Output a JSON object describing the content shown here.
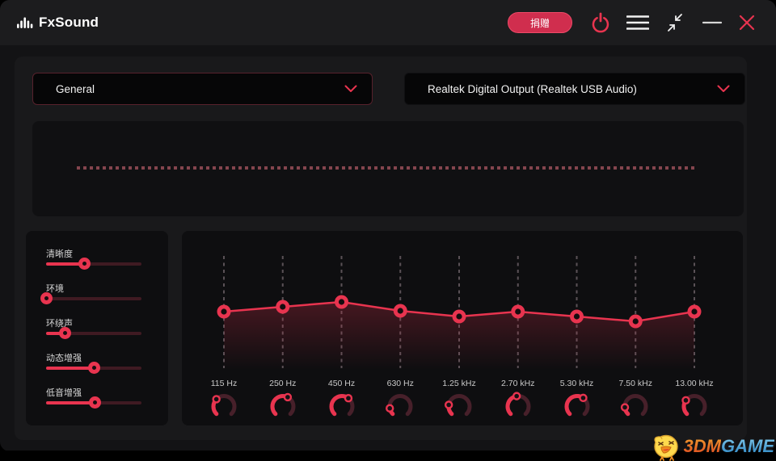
{
  "colors": {
    "accent": "#e8344f",
    "knob_track": "#47202a",
    "slider_track": "#3f1a22",
    "viz_dash": "#84454e",
    "grid_dash": "#5a5156",
    "window_bg": "#131315",
    "titlebar_bg": "#1c1c1e",
    "content_bg": "#19191b",
    "panel_bg": "#0e0e10"
  },
  "titlebar": {
    "app_name": "FxSound",
    "donate_label": "捐赠"
  },
  "preset_dropdown": {
    "value": "General"
  },
  "device_dropdown": {
    "value": "Realtek Digital Output (Realtek USB Audio)"
  },
  "effects": {
    "items": [
      {
        "label": "清晰度",
        "value": 0.4
      },
      {
        "label": "环境",
        "value": 0.0
      },
      {
        "label": "环绕声",
        "value": 0.2
      },
      {
        "label": "动态增强",
        "value": 0.5
      },
      {
        "label": "低音增强",
        "value": 0.51
      }
    ]
  },
  "chart_data": {
    "type": "line",
    "title": "Equalizer curve",
    "categories": [
      "115 Hz",
      "250 Hz",
      "450 Hz",
      "630 Hz",
      "1.25 kHz",
      "2.70 kHz",
      "5.30 kHz",
      "7.50 kHz",
      "13.00 kHz"
    ],
    "series": [
      {
        "name": "curve_point_y_px",
        "values": [
          100,
          94,
          88,
          99,
          106,
          100,
          106,
          112,
          100
        ]
      },
      {
        "name": "knob_fraction",
        "values": [
          0.33,
          0.6,
          0.64,
          0.13,
          0.2,
          0.47,
          0.63,
          0.15,
          0.3
        ]
      }
    ],
    "grid": "dashed-vertical",
    "legend": "none"
  },
  "watermark": {
    "text_3dm": "3DM",
    "text_game": "GAME"
  }
}
